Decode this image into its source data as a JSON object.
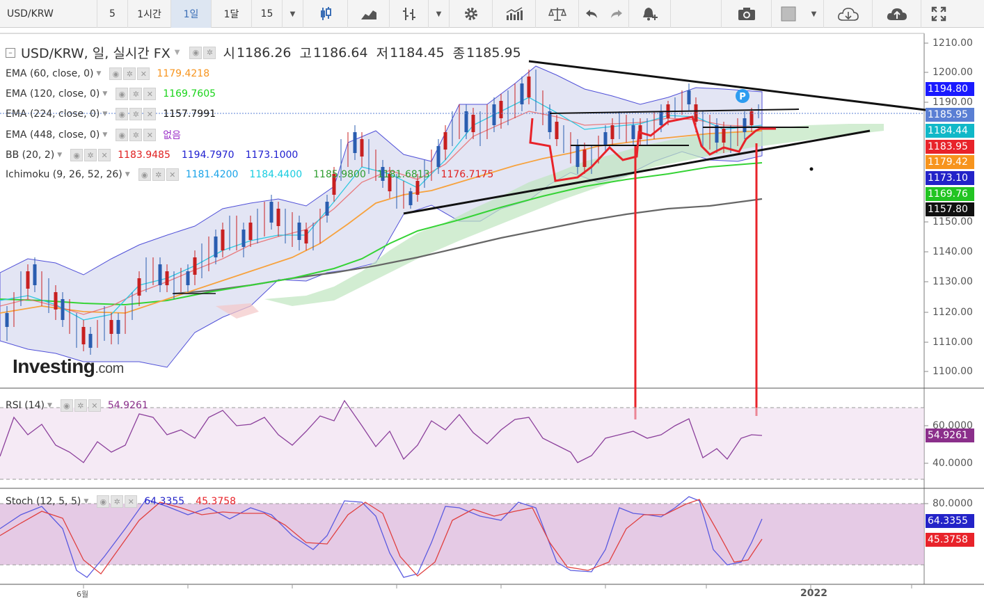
{
  "toolbar": {
    "symbol": "USD/KRW",
    "intervals": [
      "5",
      "1시간",
      "1일",
      "1달",
      "15"
    ],
    "active_interval": "1일"
  },
  "title": {
    "text": "USD/KRW, 일, 실시간 FX",
    "open_label": "시",
    "open": "1186.26",
    "high_label": "고",
    "high": "1186.64",
    "low_label": "저",
    "low": "1184.45",
    "close_label": "종",
    "close": "1185.95"
  },
  "indicators": [
    {
      "name": "EMA (60, close, 0)",
      "values": [
        {
          "text": "1179.4218",
          "color": "#f7941d"
        }
      ]
    },
    {
      "name": "EMA (120, close, 0)",
      "values": [
        {
          "text": "1169.7605",
          "color": "#19d419"
        }
      ]
    },
    {
      "name": "EMA (224, close, 0)",
      "values": [
        {
          "text": "1157.7991",
          "color": "#111111"
        }
      ]
    },
    {
      "name": "EMA (448, close, 0)",
      "values": [
        {
          "text": "없음",
          "color": "#9b30c8"
        }
      ]
    },
    {
      "name": "BB (20, 2)",
      "values": [
        {
          "text": "1183.9485",
          "color": "#e02020"
        },
        {
          "text": "1194.7970",
          "color": "#2020d0"
        },
        {
          "text": "1173.1000",
          "color": "#2020d0"
        }
      ]
    },
    {
      "name": "Ichimoku (9, 26, 52, 26)",
      "values": [
        {
          "text": "1181.4200",
          "color": "#1aa3e8"
        },
        {
          "text": "1184.4400",
          "color": "#18cce0"
        },
        {
          "text": "1185.9800",
          "color": "#2e9d2e"
        },
        {
          "text": "1181.6813",
          "color": "#2e9d2e"
        },
        {
          "text": "1176.7175",
          "color": "#e02020"
        }
      ]
    }
  ],
  "price_axis": [
    "1210.00",
    "1200.00",
    "1190.00",
    "1150.00",
    "1140.00",
    "1130.00",
    "1120.00",
    "1110.00",
    "1100.00"
  ],
  "price_tags": [
    {
      "text": "1194.80",
      "color": "#1a1aff"
    },
    {
      "text": "1185.95",
      "color": "#5a7fd4"
    },
    {
      "text": "1184.44",
      "color": "#11b8c8"
    },
    {
      "text": "1183.95",
      "color": "#e8232a"
    },
    {
      "text": "1179.42",
      "color": "#f7941d"
    },
    {
      "text": "1173.10",
      "color": "#2323c8"
    },
    {
      "text": "1169.76",
      "color": "#22c422"
    },
    {
      "text": "1157.80",
      "color": "#111111"
    }
  ],
  "rsi": {
    "name": "RSI (14)",
    "value": "54.9261",
    "value_color": "#8b2f8b",
    "axis": [
      "60.0000",
      "40.0000"
    ],
    "tag": "54.9261",
    "tag_color": "#8b2f8b"
  },
  "stoch": {
    "name": "Stoch (12, 5, 5)",
    "k": "64.3355",
    "d": "45.3758",
    "axis": [
      "80.0000"
    ],
    "tags": [
      {
        "text": "64.3355",
        "color": "#2323c8"
      },
      {
        "text": "45.3758",
        "color": "#e8232a"
      }
    ]
  },
  "time_axis": [
    "6월",
    "2022"
  ],
  "logo": {
    "brand": "Investing",
    "suffix": ".com"
  },
  "badge": "P"
}
